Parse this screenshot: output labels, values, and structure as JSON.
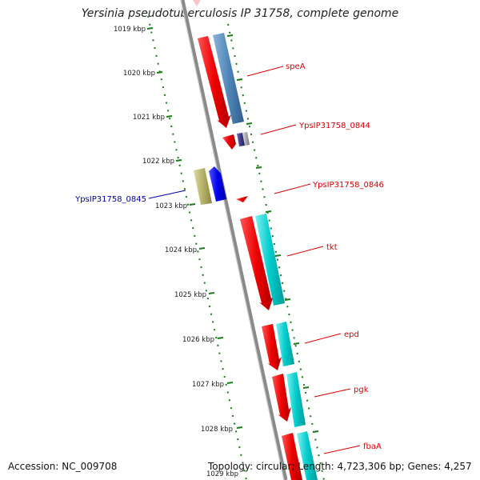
{
  "title": "Yersinia pseudotuberculosis IP 31758, complete genome",
  "footer": {
    "accession": "Accession: NC_009708",
    "topology": "Topology: circular; Length: 4,723,306 bp; Genes: 4,257"
  },
  "ticks": [
    "1019 kbp",
    "1020 kbp",
    "1021 kbp",
    "1022 kbp",
    "1023 kbp",
    "1024 kbp",
    "1025 kbp",
    "1026 kbp",
    "1027 kbp",
    "1028 kbp",
    "1029 kbp"
  ],
  "labels": [
    {
      "text": "speA",
      "color": "#dd0000"
    },
    {
      "text": "YpsIP31758_0844",
      "color": "#dd0000"
    },
    {
      "text": "YpsIP31758_0846",
      "color": "#dd0000"
    },
    {
      "text": "tkt",
      "color": "#dd0000"
    },
    {
      "text": "epd",
      "color": "#dd0000"
    },
    {
      "text": "pgk",
      "color": "#dd0000"
    },
    {
      "text": "fbaA",
      "color": "#dd0000"
    },
    {
      "text": "YpsIP31758_0845",
      "color": "#0000aa"
    }
  ],
  "colors": {
    "backbone": "#8a8a8a",
    "tick_green": "#1a7a1a",
    "gene_red": "#ee0000",
    "cds_steelblue": "#4f86b8",
    "cds_cyan": "#00cccc",
    "cds_navy": "#3a3a8a",
    "cds_olive": "#b5b06a",
    "cds_blue": "#0000ee",
    "label_red": "#dd0000",
    "label_blue": "#0000aa"
  }
}
